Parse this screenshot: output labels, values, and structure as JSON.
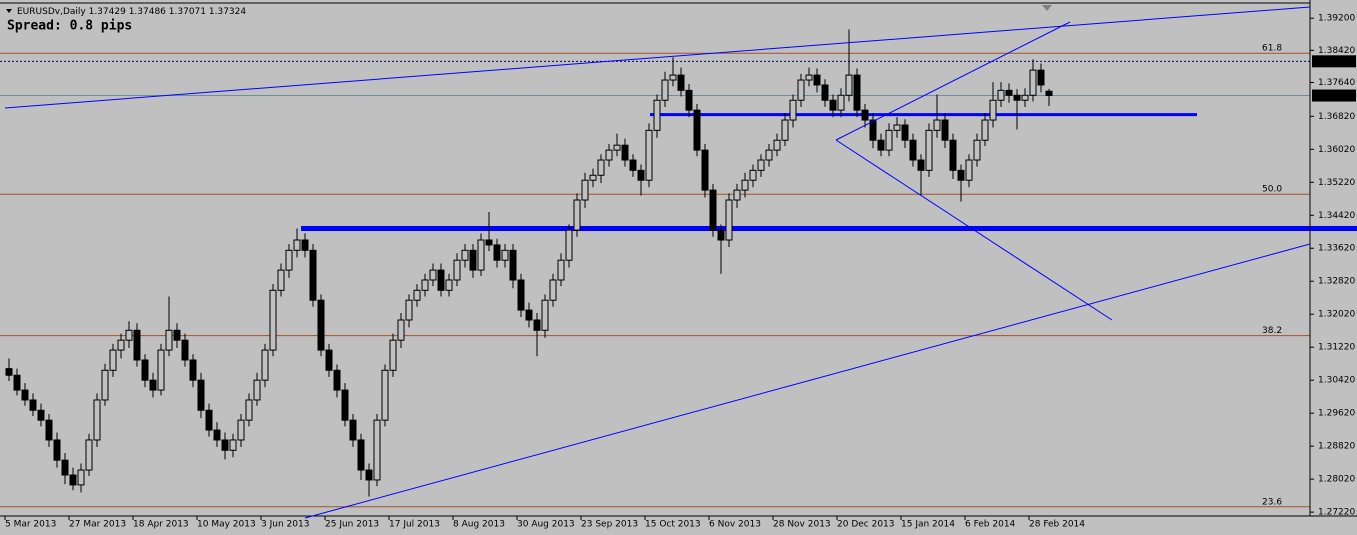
{
  "chart_data": {
    "type": "candlestick",
    "symbol": "EURUSDv,Daily",
    "spread": "Spread: 0.8 pips",
    "up_color": "#c0c0c0",
    "down_color": "#000000",
    "level_color": "#0000ff",
    "fib_color": "#a0522d",
    "ylim": [
      1.2715,
      1.3952
    ],
    "yticks": [
      {
        "value": 1.392,
        "label": "1.39200"
      },
      {
        "value": 1.3842,
        "label": "1.38420"
      },
      {
        "value": 1.3764,
        "label": "1.37640"
      },
      {
        "value": 1.3682,
        "label": "1.36820"
      },
      {
        "value": 1.3602,
        "label": "1.36020"
      },
      {
        "value": 1.3522,
        "label": "1.35220"
      },
      {
        "value": 1.3442,
        "label": "1.34420"
      },
      {
        "value": 1.3362,
        "label": "1.33620"
      },
      {
        "value": 1.3282,
        "label": "1.32820"
      },
      {
        "value": 1.3202,
        "label": "1.32020"
      },
      {
        "value": 1.3122,
        "label": "1.31220"
      },
      {
        "value": 1.3042,
        "label": "1.30420"
      },
      {
        "value": 1.2962,
        "label": "1.29620"
      },
      {
        "value": 1.2882,
        "label": "1.28820"
      },
      {
        "value": 1.2802,
        "label": "1.28020"
      },
      {
        "value": 1.2722,
        "label": "1.27220"
      }
    ],
    "x_labels": [
      "5 Mar 2013",
      "27 Mar 2013",
      "18 Apr 2013",
      "10 May 2013",
      "3 Jun 2013",
      "25 Jun 2013",
      "17 Jul 2013",
      "8 Aug 2013",
      "30 Aug 2013",
      "23 Sep 2013",
      "15 Oct 2013",
      "6 Nov 2013",
      "28 Nov 2013",
      "20 Dec 2013",
      "15 Jan 2014",
      "6 Feb 2014",
      "28 Feb 2014"
    ],
    "fib_levels": [
      {
        "value": 1.3835,
        "label": "61.8"
      },
      {
        "value": 1.3493,
        "label": "50.0"
      },
      {
        "value": 1.315,
        "label": "38.2"
      },
      {
        "value": 1.2735,
        "label": "23.6"
      }
    ],
    "levels": [
      1.3686,
      1.341
    ],
    "price_marker": 1.38154,
    "ohlc": [
      [
        1.307,
        1.3095,
        1.304,
        1.3054
      ],
      [
        1.3054,
        1.307,
        1.3005,
        1.3018
      ],
      [
        1.3018,
        1.3035,
        1.298,
        1.2994
      ],
      [
        1.2994,
        1.301,
        1.2955,
        1.2969
      ],
      [
        1.2969,
        1.2985,
        1.293,
        1.2945
      ],
      [
        1.2945,
        1.296,
        1.288,
        1.2897
      ],
      [
        1.2897,
        1.2915,
        1.283,
        1.2848
      ],
      [
        1.2848,
        1.2865,
        1.279,
        1.2812
      ],
      [
        1.2812,
        1.283,
        1.2775,
        1.2788
      ],
      [
        1.2788,
        1.284,
        1.277,
        1.2824
      ],
      [
        1.2824,
        1.2912,
        1.281,
        1.2897
      ],
      [
        1.2897,
        1.301,
        1.288,
        1.2994
      ],
      [
        1.2994,
        1.3082,
        1.298,
        1.3066
      ],
      [
        1.3066,
        1.313,
        1.305,
        1.3115
      ],
      [
        1.3115,
        1.3155,
        1.3095,
        1.3139
      ],
      [
        1.3139,
        1.3185,
        1.312,
        1.3163
      ],
      [
        1.3163,
        1.318,
        1.3075,
        1.3091
      ],
      [
        1.3091,
        1.3105,
        1.3025,
        1.3042
      ],
      [
        1.3042,
        1.306,
        1.3,
        1.3018
      ],
      [
        1.3018,
        1.313,
        1.3005,
        1.3115
      ],
      [
        1.3115,
        1.3245,
        1.31,
        1.3163
      ],
      [
        1.3163,
        1.318,
        1.312,
        1.3139
      ],
      [
        1.3139,
        1.3155,
        1.3075,
        1.3091
      ],
      [
        1.3091,
        1.3105,
        1.3025,
        1.3042
      ],
      [
        1.3042,
        1.306,
        1.295,
        1.2969
      ],
      [
        1.2969,
        1.2985,
        1.2905,
        1.2921
      ],
      [
        1.2921,
        1.294,
        1.288,
        1.2897
      ],
      [
        1.2897,
        1.2915,
        1.285,
        1.2872
      ],
      [
        1.2872,
        1.2912,
        1.2855,
        1.2897
      ],
      [
        1.2897,
        1.296,
        1.288,
        1.2945
      ],
      [
        1.2945,
        1.301,
        1.293,
        1.2994
      ],
      [
        1.2994,
        1.306,
        1.298,
        1.3042
      ],
      [
        1.3042,
        1.313,
        1.3025,
        1.3115
      ],
      [
        1.3115,
        1.3275,
        1.31,
        1.326
      ],
      [
        1.326,
        1.3325,
        1.3245,
        1.3309
      ],
      [
        1.3309,
        1.3372,
        1.329,
        1.3357
      ],
      [
        1.3357,
        1.341,
        1.334,
        1.3382
      ],
      [
        1.3382,
        1.3398,
        1.334,
        1.3357
      ],
      [
        1.3357,
        1.3372,
        1.322,
        1.3236
      ],
      [
        1.3236,
        1.325,
        1.31,
        1.3115
      ],
      [
        1.3115,
        1.313,
        1.305,
        1.3066
      ],
      [
        1.3066,
        1.308,
        1.3,
        1.3018
      ],
      [
        1.3018,
        1.3035,
        1.293,
        1.2945
      ],
      [
        1.2945,
        1.296,
        1.288,
        1.2897
      ],
      [
        1.2897,
        1.2912,
        1.28,
        1.2824
      ],
      [
        1.2824,
        1.284,
        1.276,
        1.28
      ],
      [
        1.28,
        1.296,
        1.2785,
        1.2945
      ],
      [
        1.2945,
        1.308,
        1.293,
        1.3066
      ],
      [
        1.3066,
        1.3155,
        1.305,
        1.3139
      ],
      [
        1.3139,
        1.3205,
        1.312,
        1.3188
      ],
      [
        1.3188,
        1.325,
        1.317,
        1.3236
      ],
      [
        1.3236,
        1.3275,
        1.322,
        1.326
      ],
      [
        1.326,
        1.33,
        1.3245,
        1.3285
      ],
      [
        1.3285,
        1.3325,
        1.327,
        1.3309
      ],
      [
        1.3309,
        1.3325,
        1.3245,
        1.326
      ],
      [
        1.326,
        1.33,
        1.3245,
        1.3285
      ],
      [
        1.3285,
        1.335,
        1.327,
        1.3333
      ],
      [
        1.3333,
        1.3372,
        1.3315,
        1.3357
      ],
      [
        1.3357,
        1.3372,
        1.329,
        1.3309
      ],
      [
        1.3309,
        1.3398,
        1.3295,
        1.3382
      ],
      [
        1.3382,
        1.345,
        1.3355,
        1.337
      ],
      [
        1.337,
        1.3385,
        1.3315,
        1.3333
      ],
      [
        1.3333,
        1.3372,
        1.3315,
        1.3357
      ],
      [
        1.3357,
        1.3372,
        1.3265,
        1.3285
      ],
      [
        1.3285,
        1.33,
        1.3195,
        1.3212
      ],
      [
        1.3212,
        1.323,
        1.317,
        1.3188
      ],
      [
        1.3188,
        1.3205,
        1.31,
        1.3163
      ],
      [
        1.3163,
        1.325,
        1.3145,
        1.3236
      ],
      [
        1.3236,
        1.33,
        1.322,
        1.3285
      ],
      [
        1.3285,
        1.335,
        1.327,
        1.3333
      ],
      [
        1.3333,
        1.342,
        1.3315,
        1.3406
      ],
      [
        1.3406,
        1.3495,
        1.339,
        1.3479
      ],
      [
        1.3479,
        1.3545,
        1.346,
        1.3527
      ],
      [
        1.3527,
        1.3555,
        1.351,
        1.3539
      ],
      [
        1.3539,
        1.359,
        1.352,
        1.3576
      ],
      [
        1.3576,
        1.3615,
        1.356,
        1.36
      ],
      [
        1.36,
        1.364,
        1.3585,
        1.3612
      ],
      [
        1.3612,
        1.3628,
        1.356,
        1.3576
      ],
      [
        1.3576,
        1.359,
        1.3535,
        1.3551
      ],
      [
        1.3551,
        1.3565,
        1.349,
        1.3527
      ],
      [
        1.3527,
        1.3665,
        1.351,
        1.3648
      ],
      [
        1.3648,
        1.3735,
        1.363,
        1.3721
      ],
      [
        1.3721,
        1.379,
        1.3705,
        1.377
      ],
      [
        1.377,
        1.3825,
        1.3755,
        1.3782
      ],
      [
        1.3782,
        1.38,
        1.373,
        1.3745
      ],
      [
        1.3745,
        1.376,
        1.368,
        1.3697
      ],
      [
        1.3697,
        1.3712,
        1.3585,
        1.36
      ],
      [
        1.36,
        1.3615,
        1.3485,
        1.3503
      ],
      [
        1.3503,
        1.3518,
        1.339,
        1.3406
      ],
      [
        1.3406,
        1.342,
        1.33,
        1.3382
      ],
      [
        1.3382,
        1.3495,
        1.3365,
        1.3479
      ],
      [
        1.3479,
        1.3518,
        1.346,
        1.3503
      ],
      [
        1.3503,
        1.3545,
        1.3485,
        1.3527
      ],
      [
        1.3527,
        1.3565,
        1.351,
        1.3551
      ],
      [
        1.3551,
        1.359,
        1.3535,
        1.3576
      ],
      [
        1.3576,
        1.3615,
        1.356,
        1.36
      ],
      [
        1.36,
        1.364,
        1.3585,
        1.3624
      ],
      [
        1.3624,
        1.369,
        1.361,
        1.3673
      ],
      [
        1.3673,
        1.3735,
        1.3655,
        1.3721
      ],
      [
        1.3721,
        1.3785,
        1.3705,
        1.377
      ],
      [
        1.377,
        1.38,
        1.3755,
        1.3782
      ],
      [
        1.3782,
        1.3798,
        1.374,
        1.3758
      ],
      [
        1.3758,
        1.3772,
        1.3705,
        1.3721
      ],
      [
        1.3721,
        1.3735,
        1.368,
        1.3697
      ],
      [
        1.3697,
        1.375,
        1.368,
        1.3733
      ],
      [
        1.3733,
        1.3893,
        1.3718,
        1.3782
      ],
      [
        1.3782,
        1.3798,
        1.368,
        1.3697
      ],
      [
        1.3697,
        1.3712,
        1.3655,
        1.3673
      ],
      [
        1.3673,
        1.369,
        1.3605,
        1.3624
      ],
      [
        1.3624,
        1.364,
        1.3585,
        1.36
      ],
      [
        1.36,
        1.3665,
        1.3585,
        1.3648
      ],
      [
        1.3648,
        1.368,
        1.363,
        1.3661
      ],
      [
        1.3661,
        1.3675,
        1.3605,
        1.3624
      ],
      [
        1.3624,
        1.364,
        1.356,
        1.3576
      ],
      [
        1.3576,
        1.359,
        1.349,
        1.3551
      ],
      [
        1.3551,
        1.3665,
        1.3535,
        1.3648
      ],
      [
        1.3648,
        1.3735,
        1.363,
        1.3673
      ],
      [
        1.3673,
        1.369,
        1.3605,
        1.3624
      ],
      [
        1.3624,
        1.364,
        1.353,
        1.3551
      ],
      [
        1.3551,
        1.3565,
        1.3475,
        1.3527
      ],
      [
        1.3527,
        1.359,
        1.351,
        1.3576
      ],
      [
        1.3576,
        1.364,
        1.356,
        1.3624
      ],
      [
        1.3624,
        1.369,
        1.361,
        1.3673
      ],
      [
        1.3673,
        1.3765,
        1.3655,
        1.3721
      ],
      [
        1.3721,
        1.3765,
        1.3705,
        1.3745
      ],
      [
        1.3745,
        1.3762,
        1.3715,
        1.3733
      ],
      [
        1.3733,
        1.3748,
        1.365,
        1.3721
      ],
      [
        1.3721,
        1.375,
        1.3705,
        1.3733
      ],
      [
        1.3733,
        1.382,
        1.3718,
        1.3794
      ],
      [
        1.3794,
        1.381,
        1.374,
        1.3758
      ],
      [
        1.37429,
        1.37486,
        1.37071,
        1.37324
      ]
    ]
  }
}
